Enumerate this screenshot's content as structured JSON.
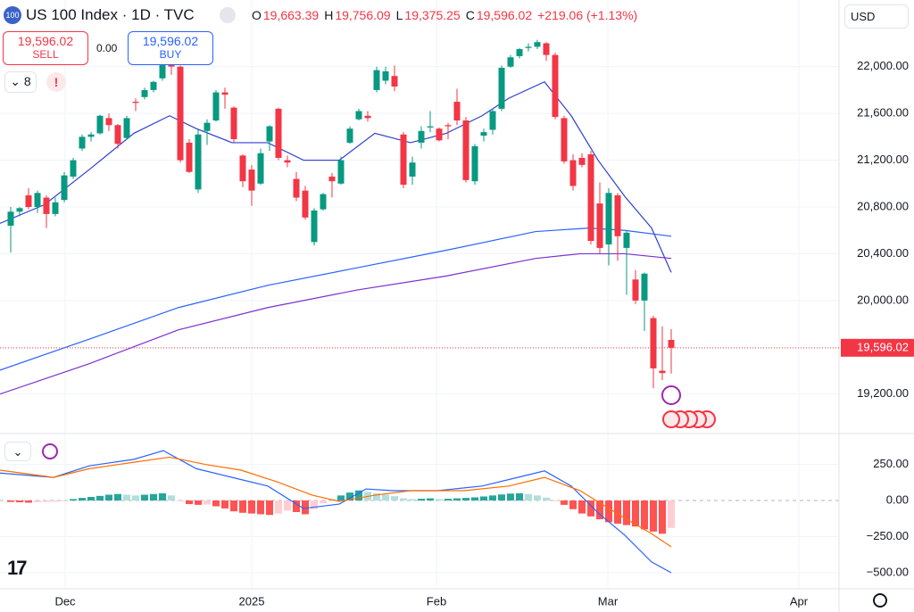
{
  "chart_data": {
    "type": "candlestick",
    "title": "US 100 Index · 1D · TVC",
    "ohlc_header": [
      {
        "label": "O",
        "value": "19,663.39"
      },
      {
        "label": "H",
        "value": "19,756.09"
      },
      {
        "label": "L",
        "value": "19,375.25"
      },
      {
        "label": "C",
        "value": "19,596.02"
      }
    ],
    "change": "+219.06 (+1.13%)",
    "sell": {
      "price": "19,596.02",
      "label": "SELL"
    },
    "spread": "0.00",
    "buy": {
      "price": "19,596.02",
      "label": "BUY"
    },
    "indicator_count": "8",
    "currency": "USD",
    "up_color": "#089981",
    "down_color": "#f23645",
    "ohlc": [
      [
        20640,
        20800,
        20410,
        20760
      ],
      [
        20760,
        20800,
        20720,
        20790
      ],
      [
        20900,
        20960,
        20780,
        20800
      ],
      [
        20800,
        20940,
        20750,
        20920
      ],
      [
        20880,
        20900,
        20620,
        20740
      ],
      [
        20740,
        20880,
        20720,
        20840
      ],
      [
        20860,
        21100,
        20840,
        21070
      ],
      [
        21060,
        21220,
        21040,
        21200
      ],
      [
        21300,
        21420,
        21280,
        21400
      ],
      [
        21400,
        21440,
        21360,
        21420
      ],
      [
        21430,
        21590,
        21420,
        21580
      ],
      [
        21560,
        21600,
        21450,
        21500
      ],
      [
        21500,
        21510,
        21300,
        21340
      ],
      [
        21390,
        21580,
        21380,
        21560
      ],
      [
        21700,
        21730,
        21620,
        21690
      ],
      [
        21740,
        21820,
        21720,
        21800
      ],
      [
        21800,
        21880,
        21780,
        21870
      ],
      [
        21900,
        22050,
        21880,
        22020
      ],
      [
        22050,
        22100,
        21930,
        22000
      ],
      [
        22000,
        22010,
        21180,
        21200
      ],
      [
        21350,
        21380,
        21090,
        21100
      ],
      [
        20950,
        21460,
        20920,
        21420
      ],
      [
        21450,
        21550,
        21330,
        21520
      ],
      [
        21540,
        21800,
        21530,
        21780
      ],
      [
        21780,
        21820,
        21640,
        21760
      ],
      [
        21650,
        21660,
        21350,
        21380
      ],
      [
        21240,
        21250,
        20970,
        21020
      ],
      [
        21120,
        21160,
        20810,
        20940
      ],
      [
        21000,
        21300,
        20990,
        21260
      ],
      [
        21360,
        21500,
        21280,
        21490
      ],
      [
        21640,
        21650,
        21200,
        21220
      ],
      [
        21200,
        21240,
        21140,
        21180
      ],
      [
        21040,
        21100,
        20850,
        20880
      ],
      [
        20940,
        20980,
        20690,
        20710
      ],
      [
        20500,
        20790,
        20470,
        20770
      ],
      [
        20780,
        20920,
        20770,
        20910
      ],
      [
        21060,
        21090,
        20880,
        21020
      ],
      [
        21000,
        21230,
        20990,
        21200
      ],
      [
        21350,
        21490,
        21340,
        21470
      ],
      [
        21550,
        21640,
        21540,
        21620
      ],
      [
        21580,
        21620,
        21530,
        21560
      ],
      [
        21800,
        22000,
        21780,
        21970
      ],
      [
        21880,
        22000,
        21850,
        21960
      ],
      [
        21920,
        22010,
        21790,
        21830
      ],
      [
        21420,
        21440,
        20960,
        20990
      ],
      [
        21060,
        21230,
        20990,
        21180
      ],
      [
        21350,
        21490,
        21300,
        21450
      ],
      [
        21480,
        21620,
        21440,
        21490
      ],
      [
        21470,
        21480,
        21360,
        21370
      ],
      [
        21500,
        21520,
        21380,
        21490
      ],
      [
        21700,
        21810,
        21500,
        21540
      ],
      [
        21540,
        21570,
        21010,
        21030
      ],
      [
        21020,
        21340,
        20990,
        21320
      ],
      [
        21410,
        21470,
        21360,
        21440
      ],
      [
        21460,
        21640,
        21420,
        21620
      ],
      [
        21640,
        22010,
        21620,
        21990
      ],
      [
        22000,
        22100,
        21990,
        22080
      ],
      [
        22090,
        22160,
        22070,
        22150
      ],
      [
        22160,
        22200,
        22130,
        22170
      ],
      [
        22170,
        22230,
        22150,
        22210
      ],
      [
        22200,
        22210,
        22050,
        22100
      ],
      [
        22100,
        22120,
        21550,
        21570
      ],
      [
        21560,
        21580,
        21170,
        21190
      ],
      [
        21200,
        21250,
        20940,
        20980
      ],
      [
        21220,
        21260,
        21140,
        21160
      ],
      [
        21250,
        21280,
        20480,
        20510
      ],
      [
        20830,
        21010,
        20400,
        20450
      ],
      [
        20480,
        20960,
        20300,
        20920
      ],
      [
        20900,
        20920,
        20340,
        20550
      ],
      [
        20450,
        20600,
        20050,
        20580
      ],
      [
        20180,
        20260,
        19970,
        20000
      ],
      [
        20000,
        20240,
        19740,
        20230
      ],
      [
        19850,
        19870,
        19250,
        19420
      ],
      [
        19400,
        19780,
        19320,
        19380
      ],
      [
        19663.39,
        19756.09,
        19375.25,
        19596.02
      ]
    ],
    "lines": [
      {
        "color": "#2f3fd0",
        "x": [
          -1.2,
          3.8,
          8.8,
          13.8,
          17.8,
          20.8,
          24.8,
          28.8,
          32.8,
          36.8,
          40.8,
          44.8,
          48.8,
          52.8,
          55.8,
          59.8,
          62.8,
          65.8,
          68.8,
          71.8,
          74
        ],
        "values": [
          20660,
          20820,
          21120,
          21430,
          21580,
          21470,
          21350,
          21350,
          21200,
          21200,
          21430,
          21350,
          21430,
          21580,
          21730,
          21870,
          21580,
          21200,
          20890,
          20620,
          20240
        ]
      },
      {
        "color": "#2962ff",
        "x": [
          -1.2,
          8.8,
          18.8,
          28.8,
          38.8,
          48.8,
          58.8,
          64.8,
          68.8,
          74
        ],
        "values": [
          19405,
          19670,
          19940,
          20130,
          20280,
          20430,
          20590,
          20620,
          20600,
          20550
        ]
      },
      {
        "color": "#7b2fd0",
        "x": [
          -1.2,
          8.8,
          18.8,
          28.8,
          38.8,
          48.8,
          58.8,
          63.8,
          68.8,
          74
        ],
        "values": [
          19200,
          19460,
          19750,
          19940,
          20090,
          20210,
          20360,
          20400,
          20400,
          20360
        ]
      }
    ],
    "last_price": {
      "value": 19596.02,
      "label": "19,596.02"
    },
    "xlim": [
      -1.2,
      92.8
    ],
    "xticks": [
      {
        "value": 6.1,
        "label": "Dec"
      },
      {
        "value": 27,
        "label": "2025"
      },
      {
        "value": 47.7,
        "label": "Feb"
      },
      {
        "value": 66.9,
        "label": "Mar"
      },
      {
        "value": 88.3,
        "label": "Apr"
      }
    ],
    "ylim": [
      18870,
      22570
    ],
    "yticks": [
      {
        "value": 19200,
        "label": "19,200.00"
      },
      {
        "value": 20000,
        "label": "20,000.00"
      },
      {
        "value": 20400,
        "label": "20,400.00"
      },
      {
        "value": 20800,
        "label": "20,800.00"
      },
      {
        "value": 21200,
        "label": "21,200.00"
      },
      {
        "value": 21600,
        "label": "21,600.00"
      },
      {
        "value": 22000,
        "label": "22,000.00"
      }
    ],
    "macd": {
      "y2lim": [
        -611,
        457
      ],
      "y2ticks": [
        {
          "value": 250,
          "label": "250.00"
        },
        {
          "value": 0,
          "label": "0.00"
        },
        {
          "value": -250,
          "label": "−250.00"
        },
        {
          "value": -500,
          "label": "−500.00"
        }
      ],
      "histogram": [
        -10,
        -12,
        -15,
        -12,
        -10,
        -8,
        -5,
        10,
        18,
        25,
        32,
        40,
        45,
        40,
        35,
        40,
        45,
        50,
        35,
        -5,
        -25,
        -30,
        -28,
        -40,
        -55,
        -75,
        -85,
        -90,
        -95,
        -100,
        -90,
        -70,
        -80,
        -95,
        -60,
        -20,
        10,
        35,
        55,
        70,
        60,
        50,
        40,
        30,
        15,
        10,
        12,
        15,
        10,
        12,
        15,
        18,
        22,
        28,
        35,
        42,
        48,
        50,
        45,
        35,
        20,
        -5,
        -30,
        -60,
        -90,
        -110,
        -130,
        -150,
        -160,
        -170,
        -180,
        -200,
        -215,
        -230,
        -190
      ],
      "lines": [
        {
          "color": "#2962ff",
          "x": [
            -1.2,
            4.8,
            8.8,
            13.8,
            17.1,
            20.8,
            24.8,
            28.8,
            32.8,
            36.8,
            39.8,
            42.8,
            47.8,
            52.8,
            56.8,
            59.8,
            62.8,
            65.8,
            68.8,
            71.8,
            74
          ],
          "values": [
            190,
            160,
            240,
            285,
            345,
            220,
            160,
            100,
            -55,
            -25,
            80,
            68,
            68,
            100,
            160,
            205,
            100,
            -85,
            -240,
            -425,
            -500
          ]
        },
        {
          "color": "#ff6d00",
          "x": [
            -1.2,
            4.8,
            8.8,
            13.8,
            17.8,
            21.8,
            25.8,
            29.8,
            33.8,
            36.8,
            40.8,
            44.8,
            50.8,
            55.8,
            59.8,
            63.8,
            67.8,
            71.8,
            74
          ],
          "values": [
            210,
            160,
            220,
            265,
            300,
            250,
            210,
            130,
            37,
            -6,
            37,
            68,
            68,
            100,
            160,
            68,
            -85,
            -230,
            -320
          ]
        }
      ]
    }
  }
}
